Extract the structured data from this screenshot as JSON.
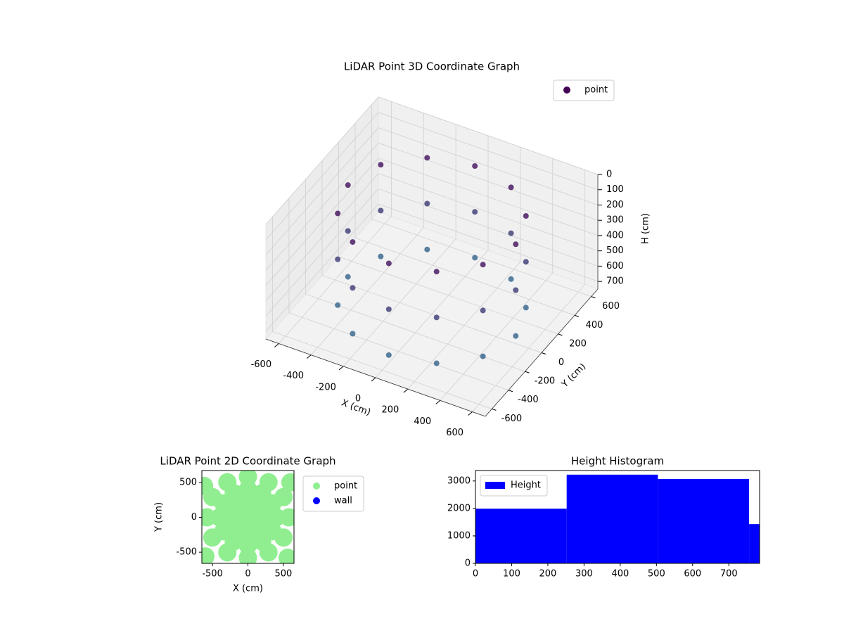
{
  "chart_data": [
    {
      "type": "scatter3d",
      "title": "LiDAR Point 3D Coordinate Graph",
      "xlabel": "X (cm)",
      "ylabel": "Y (cm)",
      "zlabel": "H (cm)",
      "xlim": [
        -680,
        680
      ],
      "ylim": [
        -680,
        680
      ],
      "zlim": [
        750,
        0
      ],
      "xticks": [
        -600,
        -400,
        -200,
        0,
        200,
        400,
        600
      ],
      "yticks": [
        -600,
        -400,
        -200,
        0,
        200,
        400,
        600
      ],
      "zticks": [
        0,
        100,
        200,
        300,
        400,
        500,
        600,
        700
      ],
      "grid": true,
      "legend": "upper right",
      "colormap": [
        "#440154",
        "#31688e"
      ],
      "series": [
        {
          "name": "point",
          "color": "#440154",
          "x": [
            520,
            450,
            260,
            0,
            -260,
            -450,
            -520,
            -450,
            -260,
            0,
            260,
            450,
            520,
            450,
            260,
            0,
            -260,
            -450,
            -520,
            -450,
            -260,
            0,
            260,
            450,
            520,
            450,
            260,
            0,
            -260,
            -450,
            -520,
            -450,
            -260,
            0,
            260,
            450
          ],
          "y": [
            0,
            260,
            450,
            520,
            450,
            260,
            0,
            -260,
            -450,
            -520,
            -450,
            -260,
            0,
            260,
            450,
            520,
            450,
            260,
            0,
            -260,
            -450,
            -520,
            -450,
            -260,
            0,
            260,
            450,
            520,
            450,
            260,
            0,
            -260,
            -450,
            -520,
            -450,
            -260
          ],
          "h": [
            100,
            100,
            100,
            100,
            100,
            100,
            100,
            100,
            100,
            100,
            100,
            100,
            400,
            400,
            400,
            400,
            400,
            400,
            400,
            400,
            400,
            400,
            400,
            400,
            700,
            700,
            700,
            700,
            700,
            700,
            700,
            700,
            700,
            700,
            700,
            700
          ]
        }
      ]
    },
    {
      "type": "scatter",
      "title": "LiDAR Point 2D Coordinate Graph",
      "xlabel": "X (cm)",
      "ylabel": "Y (cm)",
      "xlim": [
        -650,
        650
      ],
      "ylim": [
        -660,
        670
      ],
      "xticks": [
        -500,
        0,
        500
      ],
      "yticks": [
        -500,
        0,
        500
      ],
      "legend": "outside right",
      "series": [
        {
          "name": "point",
          "color": "#90ee90",
          "x": [
            0,
            200,
            141,
            0,
            -141,
            -200,
            -141,
            0,
            141,
            400,
            346,
            200,
            0,
            -200,
            -346,
            -400,
            -346,
            -200,
            0,
            200,
            346,
            580,
            502,
            290,
            0,
            -290,
            -502,
            -580,
            -502,
            -290,
            0,
            290,
            502,
            -600,
            600,
            -620,
            560
          ],
          "y": [
            0,
            0,
            141,
            200,
            141,
            0,
            -141,
            -200,
            -141,
            0,
            200,
            346,
            400,
            346,
            200,
            0,
            -200,
            -346,
            -400,
            -346,
            -200,
            0,
            290,
            502,
            580,
            502,
            290,
            0,
            -290,
            -502,
            -580,
            -502,
            -290,
            -560,
            500,
            450,
            -580
          ]
        },
        {
          "name": "wall",
          "color": "#0000ff",
          "x": [],
          "y": []
        }
      ]
    },
    {
      "type": "histogram",
      "title": "Height Histogram",
      "bins": [
        0,
        252,
        504,
        756,
        1008
      ],
      "xlim": [
        0,
        785
      ],
      "ylim": [
        0,
        3380
      ],
      "xticks": [
        0,
        100,
        200,
        300,
        400,
        500,
        600,
        700
      ],
      "yticks": [
        0,
        1000,
        2000,
        3000
      ],
      "legend": "upper left",
      "series": [
        {
          "name": "Height",
          "color": "#0000ff",
          "values": [
            1990,
            3230,
            3075,
            1430
          ]
        }
      ]
    }
  ]
}
